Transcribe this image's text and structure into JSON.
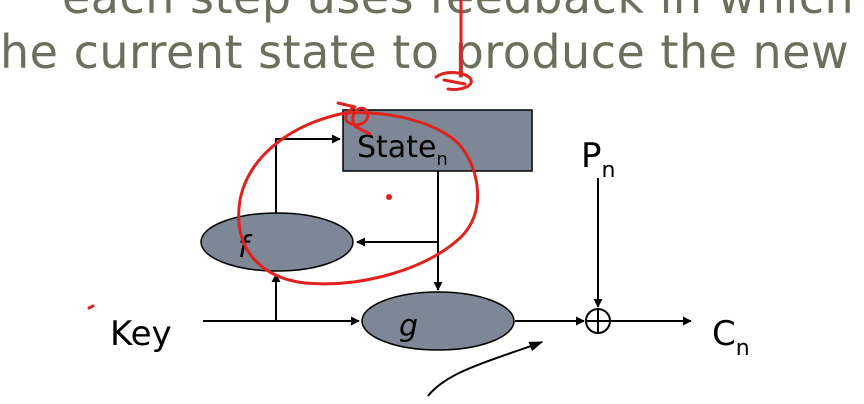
{
  "slide": {
    "line1": "each step uses feedback in which t",
    "line2": "he current state to produce the new"
  },
  "diagram": {
    "state_box": {
      "label": "State",
      "subscript": "n"
    },
    "f_node": {
      "label": "f"
    },
    "g_node": {
      "label": "g"
    },
    "key_label": "Key",
    "plaintext": {
      "label": "P",
      "subscript": "n"
    },
    "ciphertext": {
      "label": "C",
      "subscript": "n"
    },
    "xor_symbol": "xor-operator",
    "colors": {
      "node_fill": "#7d8795",
      "stroke": "#000000",
      "annotation": "#e0221e",
      "slide_text": "#6e6e5e"
    }
  }
}
